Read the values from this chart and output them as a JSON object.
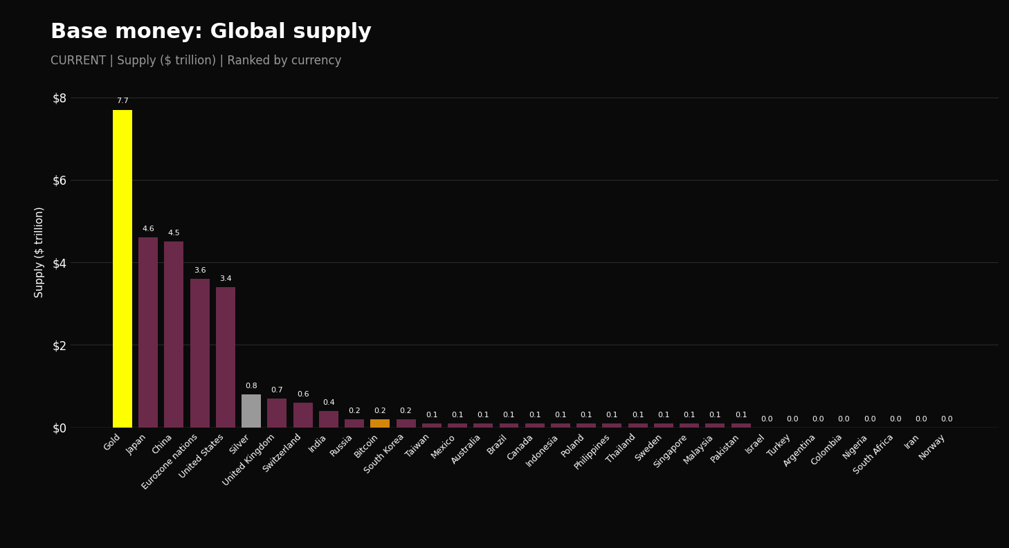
{
  "title": "Base money: Global supply",
  "subtitle": "CURRENT | Supply ($ trillion) | Ranked by currency",
  "ylabel": "Supply ($ trillion)",
  "background_color": "#0a0a0a",
  "text_color": "#ffffff",
  "subtitle_color": "#999999",
  "grid_color": "#2a2a2a",
  "label_color": "#ffffff",
  "categories": [
    "Gold",
    "Japan",
    "China",
    "Eurozone nations",
    "United States",
    "Silver",
    "United Kingdom",
    "Switzerland",
    "India",
    "Russia",
    "Bitcoin",
    "South Korea",
    "Taiwan",
    "Mexico",
    "Australia",
    "Brazil",
    "Canada",
    "Indonesia",
    "Poland",
    "Philippines",
    "Thailand",
    "Sweden",
    "Singapore",
    "Malaysia",
    "Pakistan",
    "Israel",
    "Turkey",
    "Argentina",
    "Colombia",
    "Nigeria",
    "South Africa",
    "Iran",
    "Norway"
  ],
  "values": [
    7.7,
    4.6,
    4.5,
    3.6,
    3.4,
    0.8,
    0.7,
    0.6,
    0.4,
    0.2,
    0.2,
    0.2,
    0.1,
    0.1,
    0.1,
    0.1,
    0.1,
    0.1,
    0.1,
    0.1,
    0.1,
    0.1,
    0.1,
    0.1,
    0.1,
    0.0,
    0.0,
    0.0,
    0.0,
    0.0,
    0.0,
    0.0,
    0.0
  ],
  "bar_colors": [
    "#ffff00",
    "#6b2a4a",
    "#6b2a4a",
    "#6b2a4a",
    "#6b2a4a",
    "#999999",
    "#6b2a4a",
    "#6b2a4a",
    "#6b2a4a",
    "#6b2a4a",
    "#d4860a",
    "#6b2a4a",
    "#6b2a4a",
    "#6b2a4a",
    "#6b2a4a",
    "#6b2a4a",
    "#6b2a4a",
    "#6b2a4a",
    "#6b2a4a",
    "#6b2a4a",
    "#6b2a4a",
    "#6b2a4a",
    "#6b2a4a",
    "#6b2a4a",
    "#6b2a4a",
    "#6b2a4a",
    "#6b2a4a",
    "#6b2a4a",
    "#6b2a4a",
    "#6b2a4a",
    "#6b2a4a",
    "#6b2a4a",
    "#6b2a4a"
  ],
  "label_values": [
    "7.7",
    "4.6",
    "4.5",
    "3.6",
    "3.4",
    "0.8",
    "0.7",
    "0.6",
    "0.4",
    "0.2",
    "0.2",
    "0.2",
    "0.1",
    "0.1",
    "0.1",
    "0.1",
    "0.1",
    "0.1",
    "0.1",
    "0.1",
    "0.1",
    "0.1",
    "0.1",
    "0.1",
    "0.1",
    "0.0",
    "0.0",
    "0.0",
    "0.0",
    "0.0",
    "0.0",
    "0.0",
    "0.0"
  ],
  "ylim": [
    0,
    8.5
  ],
  "yticks": [
    0,
    2,
    4,
    6,
    8
  ],
  "ytick_labels": [
    "$0",
    "$2",
    "$4",
    "$6",
    "$8"
  ],
  "title_fontsize": 22,
  "subtitle_fontsize": 12,
  "ylabel_fontsize": 11,
  "ytick_fontsize": 12,
  "xtick_fontsize": 9,
  "label_fontsize": 8
}
